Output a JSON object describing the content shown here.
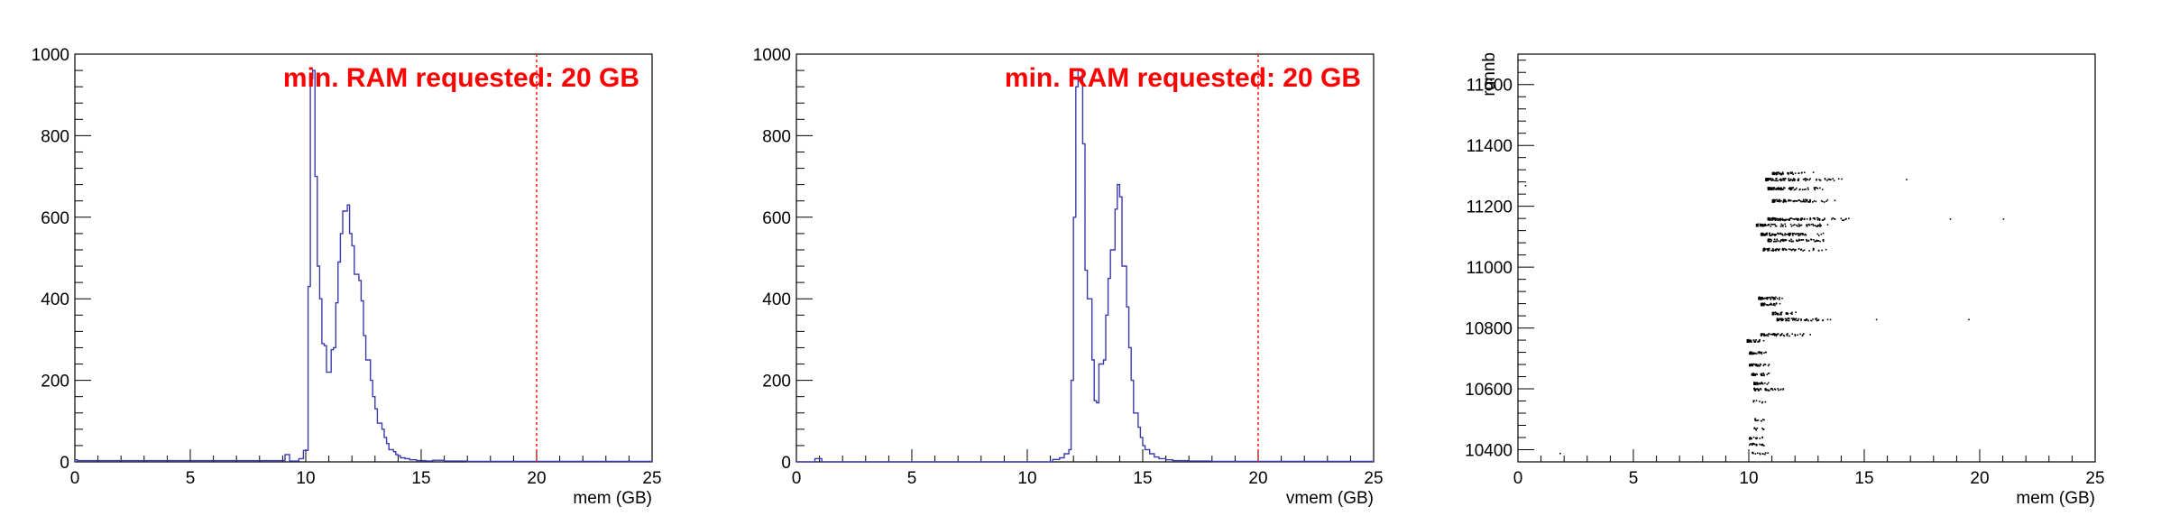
{
  "colors": {
    "hist_line": "#3b3bb0",
    "annotation": "#ff0000",
    "scatter": "#000000"
  },
  "chart_data": [
    {
      "type": "histogram",
      "title": "",
      "xlabel": "mem (GB)",
      "ylabel": "",
      "xlim": [
        0,
        25
      ],
      "ylim": [
        0,
        1000
      ],
      "xticks": [
        0,
        5,
        10,
        15,
        20,
        25
      ],
      "yticks": [
        0,
        200,
        400,
        600,
        800,
        1000
      ],
      "grid": false,
      "annotation": {
        "text": "min. RAM requested: 20 GB",
        "x": 20
      },
      "series": [
        {
          "values": [
            [
              0.0,
              5
            ],
            [
              0.1,
              3
            ],
            [
              9.1,
              18
            ],
            [
              9.3,
              2
            ],
            [
              9.5,
              2
            ],
            [
              9.7,
              8
            ],
            [
              9.9,
              28
            ],
            [
              10.1,
              120
            ],
            [
              10.1,
              430
            ],
            [
              10.2,
              940
            ],
            [
              10.3,
              960
            ],
            [
              10.4,
              700
            ],
            [
              10.5,
              480
            ],
            [
              10.6,
              400
            ],
            [
              10.7,
              290
            ],
            [
              10.8,
              285
            ],
            [
              10.9,
              220
            ],
            [
              11.0,
              220
            ],
            [
              11.1,
              275
            ],
            [
              11.2,
              280
            ],
            [
              11.3,
              390
            ],
            [
              11.4,
              490
            ],
            [
              11.5,
              560
            ],
            [
              11.6,
              615
            ],
            [
              11.8,
              630
            ],
            [
              11.9,
              560
            ],
            [
              12.0,
              530
            ],
            [
              12.1,
              460
            ],
            [
              12.3,
              445
            ],
            [
              12.4,
              395
            ],
            [
              12.5,
              310
            ],
            [
              12.6,
              250
            ],
            [
              12.8,
              200
            ],
            [
              12.9,
              160
            ],
            [
              13.0,
              130
            ],
            [
              13.1,
              95
            ],
            [
              13.3,
              80
            ],
            [
              13.4,
              60
            ],
            [
              13.5,
              45
            ],
            [
              13.6,
              30
            ],
            [
              13.8,
              25
            ],
            [
              13.9,
              18
            ],
            [
              14.0,
              15
            ],
            [
              14.1,
              10
            ],
            [
              14.3,
              8
            ],
            [
              14.5,
              5
            ],
            [
              14.8,
              3
            ],
            [
              15.2,
              2
            ],
            [
              15.5,
              4
            ],
            [
              16.0,
              2
            ],
            [
              16.5,
              2
            ],
            [
              17.0,
              1
            ],
            [
              25.0,
              0
            ]
          ]
        }
      ]
    },
    {
      "type": "histogram",
      "title": "",
      "xlabel": "vmem (GB)",
      "ylabel": "",
      "xlim": [
        0,
        25
      ],
      "ylim": [
        0,
        1000
      ],
      "xticks": [
        0,
        5,
        10,
        15,
        20,
        25
      ],
      "yticks": [
        0,
        200,
        400,
        600,
        800,
        1000
      ],
      "grid": false,
      "annotation": {
        "text": "min. RAM requested: 20 GB",
        "x": 20
      },
      "series": [
        {
          "values": [
            [
              0.0,
              0
            ],
            [
              0.8,
              8
            ],
            [
              1.0,
              8
            ],
            [
              1.1,
              0
            ],
            [
              11.1,
              6
            ],
            [
              11.4,
              10
            ],
            [
              11.6,
              20
            ],
            [
              11.8,
              30
            ],
            [
              11.9,
              200
            ],
            [
              12.0,
              600
            ],
            [
              12.1,
              920
            ],
            [
              12.2,
              960
            ],
            [
              12.4,
              780
            ],
            [
              12.5,
              470
            ],
            [
              12.6,
              400
            ],
            [
              12.8,
              250
            ],
            [
              12.9,
              150
            ],
            [
              13.0,
              145
            ],
            [
              13.1,
              240
            ],
            [
              13.3,
              250
            ],
            [
              13.4,
              360
            ],
            [
              13.5,
              450
            ],
            [
              13.6,
              520
            ],
            [
              13.8,
              620
            ],
            [
              13.9,
              680
            ],
            [
              14.0,
              650
            ],
            [
              14.1,
              480
            ],
            [
              14.3,
              380
            ],
            [
              14.4,
              280
            ],
            [
              14.5,
              200
            ],
            [
              14.6,
              120
            ],
            [
              14.8,
              85
            ],
            [
              14.9,
              60
            ],
            [
              15.0,
              40
            ],
            [
              15.1,
              30
            ],
            [
              15.3,
              20
            ],
            [
              15.5,
              12
            ],
            [
              15.7,
              8
            ],
            [
              16.0,
              5
            ],
            [
              16.3,
              3
            ],
            [
              17.0,
              2
            ],
            [
              18.0,
              1
            ],
            [
              25.0,
              0
            ]
          ]
        }
      ]
    },
    {
      "type": "scatter",
      "title": "",
      "xlabel": "mem (GB)",
      "ylabel": "runnb",
      "xlim": [
        0,
        25
      ],
      "ylim": [
        10360,
        11700
      ],
      "xticks": [
        0,
        5,
        10,
        15,
        20,
        25
      ],
      "yticks": [
        10400,
        10600,
        10800,
        11000,
        11200,
        11400,
        11600
      ],
      "grid": false,
      "series": [
        {
          "bands": [
            [
              10390,
              10.1,
              10.9,
              14
            ],
            [
              10420,
              10.0,
              10.9,
              18
            ],
            [
              10440,
              10.0,
              10.9,
              16
            ],
            [
              10470,
              10.2,
              11.1,
              8
            ],
            [
              10500,
              10.2,
              11.1,
              10
            ],
            [
              10560,
              10.1,
              10.9,
              8
            ],
            [
              10600,
              10.2,
              11.6,
              40
            ],
            [
              10620,
              10.2,
              10.9,
              30
            ],
            [
              10650,
              10.1,
              11.0,
              30
            ],
            [
              10680,
              10.0,
              10.9,
              35
            ],
            [
              10720,
              10.0,
              10.9,
              35
            ],
            [
              10760,
              9.9,
              10.9,
              35
            ],
            [
              10780,
              10.5,
              12.8,
              60
            ],
            [
              10830,
              11.2,
              13.9,
              70
            ],
            [
              10850,
              11.0,
              12.2,
              35
            ],
            [
              10880,
              10.5,
              11.5,
              40
            ],
            [
              10900,
              10.4,
              11.6,
              50
            ],
            [
              11060,
              10.6,
              13.6,
              70
            ],
            [
              11090,
              10.8,
              14.0,
              80
            ],
            [
              11110,
              10.5,
              13.6,
              90
            ],
            [
              11140,
              10.3,
              13.9,
              80
            ],
            [
              11160,
              10.8,
              14.6,
              100
            ],
            [
              11220,
              11.0,
              14.2,
              80
            ],
            [
              11260,
              10.8,
              13.8,
              85
            ],
            [
              11290,
              10.7,
              14.3,
              90
            ],
            [
              11310,
              11.0,
              13.0,
              45
            ]
          ]
        }
      ]
    }
  ]
}
